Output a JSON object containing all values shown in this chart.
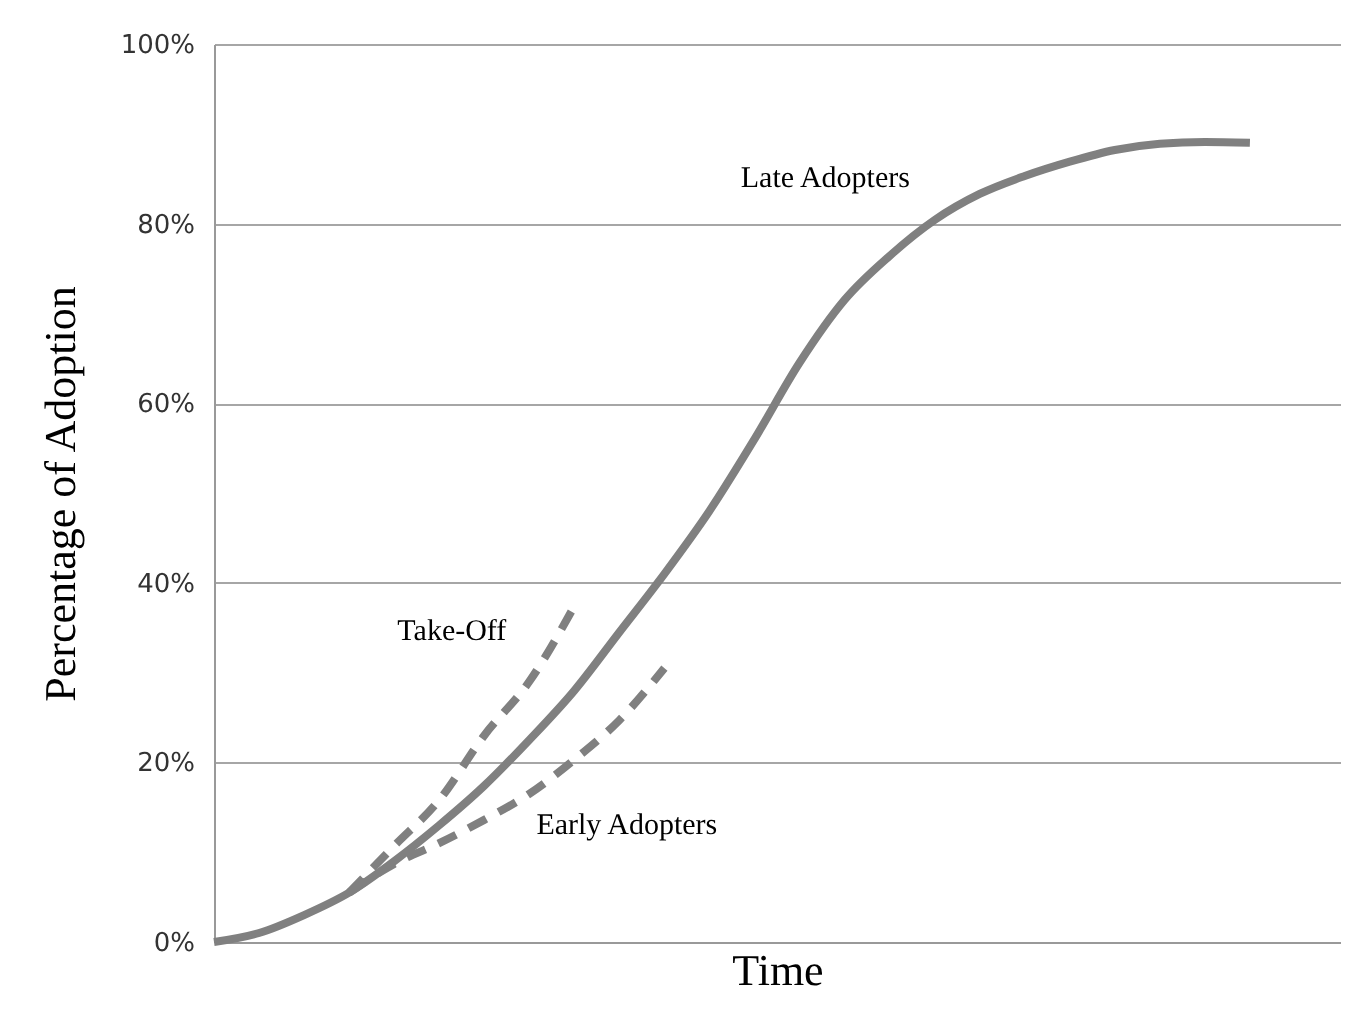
{
  "chart_data": {
    "type": "line",
    "xlabel": "Time",
    "ylabel": "Percentage of Adoption",
    "categories": [
      null,
      null,
      null,
      null,
      null,
      null,
      null,
      null,
      null,
      null,
      null,
      null,
      null,
      null,
      null,
      null,
      null,
      null,
      null,
      null,
      null,
      null,
      null,
      null,
      null,
      null
    ],
    "series": [
      {
        "name": "Late Adopters",
        "color": "#808080",
        "line_style": "solid",
        "values": [
          0,
          1,
          3,
          5.5,
          9,
          13,
          17.4,
          22.5,
          28,
          34.5,
          41,
          48,
          56,
          64.5,
          71.5,
          76.4,
          80.4,
          83.3,
          85.3,
          86.9,
          88.2,
          88.9,
          89.1,
          89,
          null,
          null
        ]
      },
      {
        "name": "Take-Off",
        "color": "#808080",
        "line_style": "dashed",
        "values": [
          null,
          null,
          null,
          5.5,
          10.7,
          15.8,
          23,
          29,
          37.4,
          null,
          null,
          null,
          null,
          null,
          null,
          null,
          null,
          null,
          null,
          null,
          null,
          null,
          null,
          null,
          null,
          null
        ]
      },
      {
        "name": "Early Adopters",
        "color": "#808080",
        "line_style": "dashed",
        "values": [
          null,
          null,
          null,
          5.5,
          8.7,
          11,
          13.6,
          16.5,
          20.3,
          24.7,
          30.5,
          null,
          null,
          null,
          null,
          null,
          null,
          null,
          null,
          null,
          null,
          null,
          null,
          null,
          null,
          null
        ]
      }
    ],
    "ylim": [
      0,
      100
    ],
    "yticks": [
      {
        "value": 0,
        "label": "0%"
      },
      {
        "value": 20,
        "label": "20%"
      },
      {
        "value": 40,
        "label": "40%"
      },
      {
        "value": 60,
        "label": "60%"
      },
      {
        "value": 80,
        "label": "80%"
      },
      {
        "value": 100,
        "label": "100%"
      }
    ],
    "grid": "y",
    "legend": false,
    "tick_labels": "y",
    "marker": "none"
  }
}
